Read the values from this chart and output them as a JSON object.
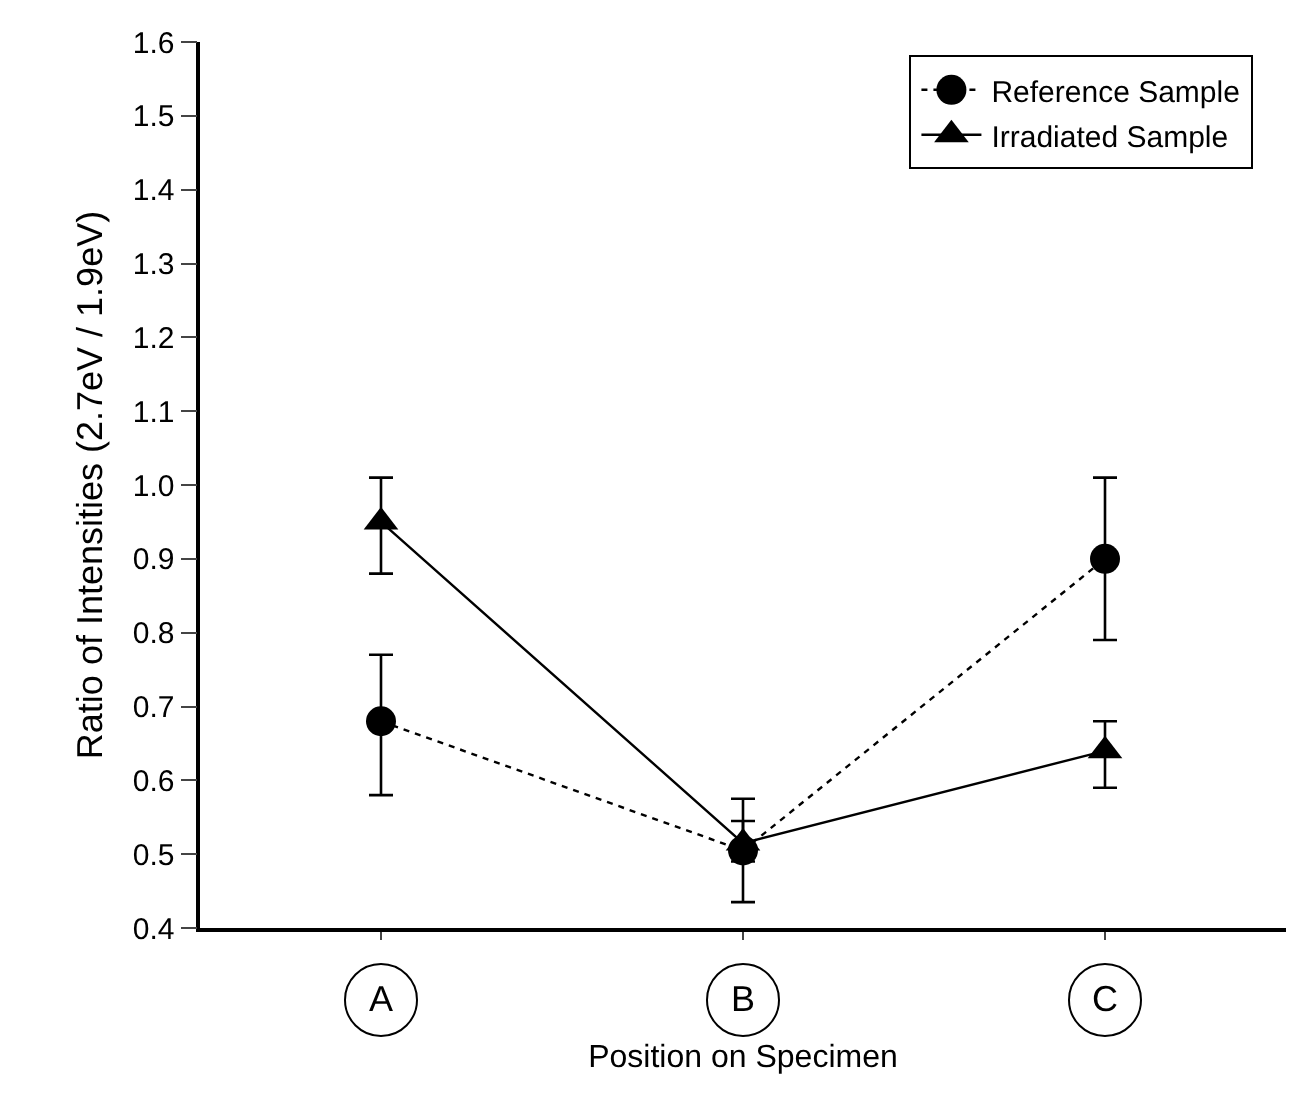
{
  "chart_data": {
    "type": "line",
    "xlabel": "Position on Specimen",
    "ylabel": "Ratio of Intensities (2.7eV / 1.9eV)",
    "categories": [
      "A",
      "B",
      "C"
    ],
    "series": [
      {
        "name": "Reference Sample",
        "color": "#000000",
        "marker": "circle",
        "line_style": "dotted",
        "values": [
          0.68,
          0.505,
          0.9
        ],
        "errors": [
          [
            0.58,
            0.77
          ],
          [
            0.435,
            0.575
          ],
          [
            0.79,
            1.01
          ]
        ]
      },
      {
        "name": "Irradiated Sample",
        "color": "#000000",
        "marker": "triangle",
        "line_style": "solid",
        "values": [
          0.95,
          0.515,
          0.64
        ],
        "errors": [
          [
            0.88,
            1.01
          ],
          [
            0.49,
            0.545
          ],
          [
            0.59,
            0.68
          ]
        ]
      }
    ],
    "ylim": [
      0.4,
      1.6
    ],
    "yticks": [
      0.4,
      0.5,
      0.6,
      0.7,
      0.8,
      0.9,
      {
        "value": 1.0,
        "label": "1.0"
      },
      1.1,
      1.2,
      1.3,
      1.4,
      1.5,
      1.6
    ],
    "legend": "top right"
  }
}
